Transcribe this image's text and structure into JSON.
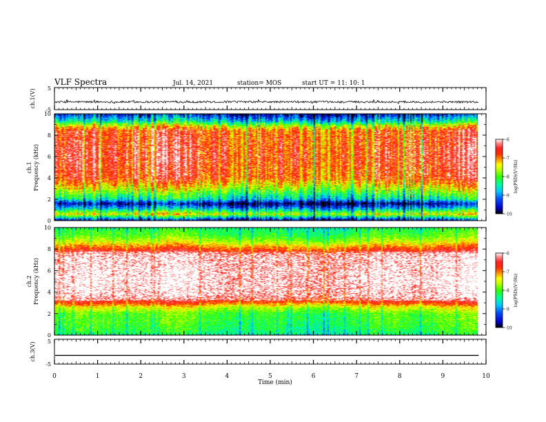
{
  "header": {
    "title": "VLF Spectra",
    "date": "Jul. 14, 2021",
    "station": "station= MOS",
    "start": "start UT = 11: 10: 1"
  },
  "colors": {
    "cmap": [
      "#000000",
      "#0000c8",
      "#0050ff",
      "#00c8ff",
      "#00ff9a",
      "#30ff00",
      "#c8ff00",
      "#ffff00",
      "#ffa000",
      "#ff3000",
      "#ff1010",
      "#ff6060",
      "#ffffff"
    ]
  },
  "chart_data": [
    {
      "type": "line",
      "name": "ch1-waveform",
      "ylabel": "ch.1(V)",
      "ylim": [
        -5,
        5
      ],
      "yticks": [
        "5",
        "-5"
      ],
      "xlim": [
        0,
        10
      ],
      "baseline": -1.5
    },
    {
      "type": "heatmap",
      "name": "ch1-spectrogram",
      "ylabel": "ch.1\nFrequency (kHz)",
      "ylim": [
        0,
        10
      ],
      "yticks": [
        "10",
        "8",
        "6",
        "4",
        "2",
        "0"
      ],
      "xlim": [
        0,
        9.83
      ],
      "profile_kHz": [
        0.0,
        0.6,
        1.2,
        1.6,
        2.0,
        2.6,
        3.2,
        4.0,
        6.0,
        8.4,
        8.9,
        9.3,
        9.8,
        10.0
      ],
      "profile_level": [
        -9.8,
        -7.5,
        -9.0,
        -9.8,
        -8.6,
        -8.0,
        -7.4,
        -6.8,
        -6.6,
        -6.8,
        -7.6,
        -8.6,
        -9.3,
        -9.5
      ],
      "colorbar": {
        "label": "log(PSD)(V²/Hz)",
        "ticks": [
          "-6",
          "-7",
          "-8",
          "-9",
          "-10"
        ],
        "range": [
          -10,
          -6
        ]
      }
    },
    {
      "type": "heatmap",
      "name": "ch2-spectrogram",
      "ylabel": "ch.2\nFrequency (kHz)",
      "ylim": [
        0,
        10
      ],
      "yticks": [
        "10",
        "8",
        "6",
        "4",
        "2",
        "0"
      ],
      "xlim": [
        0,
        9.83
      ],
      "profile_kHz": [
        0.0,
        0.4,
        1.0,
        2.0,
        2.6,
        3.0,
        3.6,
        5.0,
        7.4,
        8.0,
        8.6,
        9.2,
        10.0
      ],
      "profile_level": [
        -8.4,
        -8.2,
        -8.1,
        -8.0,
        -7.5,
        -6.8,
        -6.25,
        -6.05,
        -6.25,
        -6.8,
        -7.5,
        -8.0,
        -8.3
      ],
      "colorbar": {
        "label": "log(PSD)(V²/Hz)",
        "ticks": [
          "-6",
          "-7",
          "-8",
          "-9",
          "-10"
        ],
        "range": [
          -10,
          -6
        ]
      }
    },
    {
      "type": "line",
      "name": "ch3-waveform",
      "ylabel": "ch.3(V)",
      "ylim": [
        -5,
        5
      ],
      "yticks": [
        "5",
        "-5"
      ],
      "xlim": [
        0,
        10
      ],
      "baseline": -1.5
    }
  ],
  "xaxis": {
    "label": "Time (min)",
    "xlim": [
      0,
      10
    ],
    "ticks": [
      "0",
      "1",
      "2",
      "3",
      "4",
      "5",
      "6",
      "7",
      "8",
      "9",
      "10"
    ]
  }
}
